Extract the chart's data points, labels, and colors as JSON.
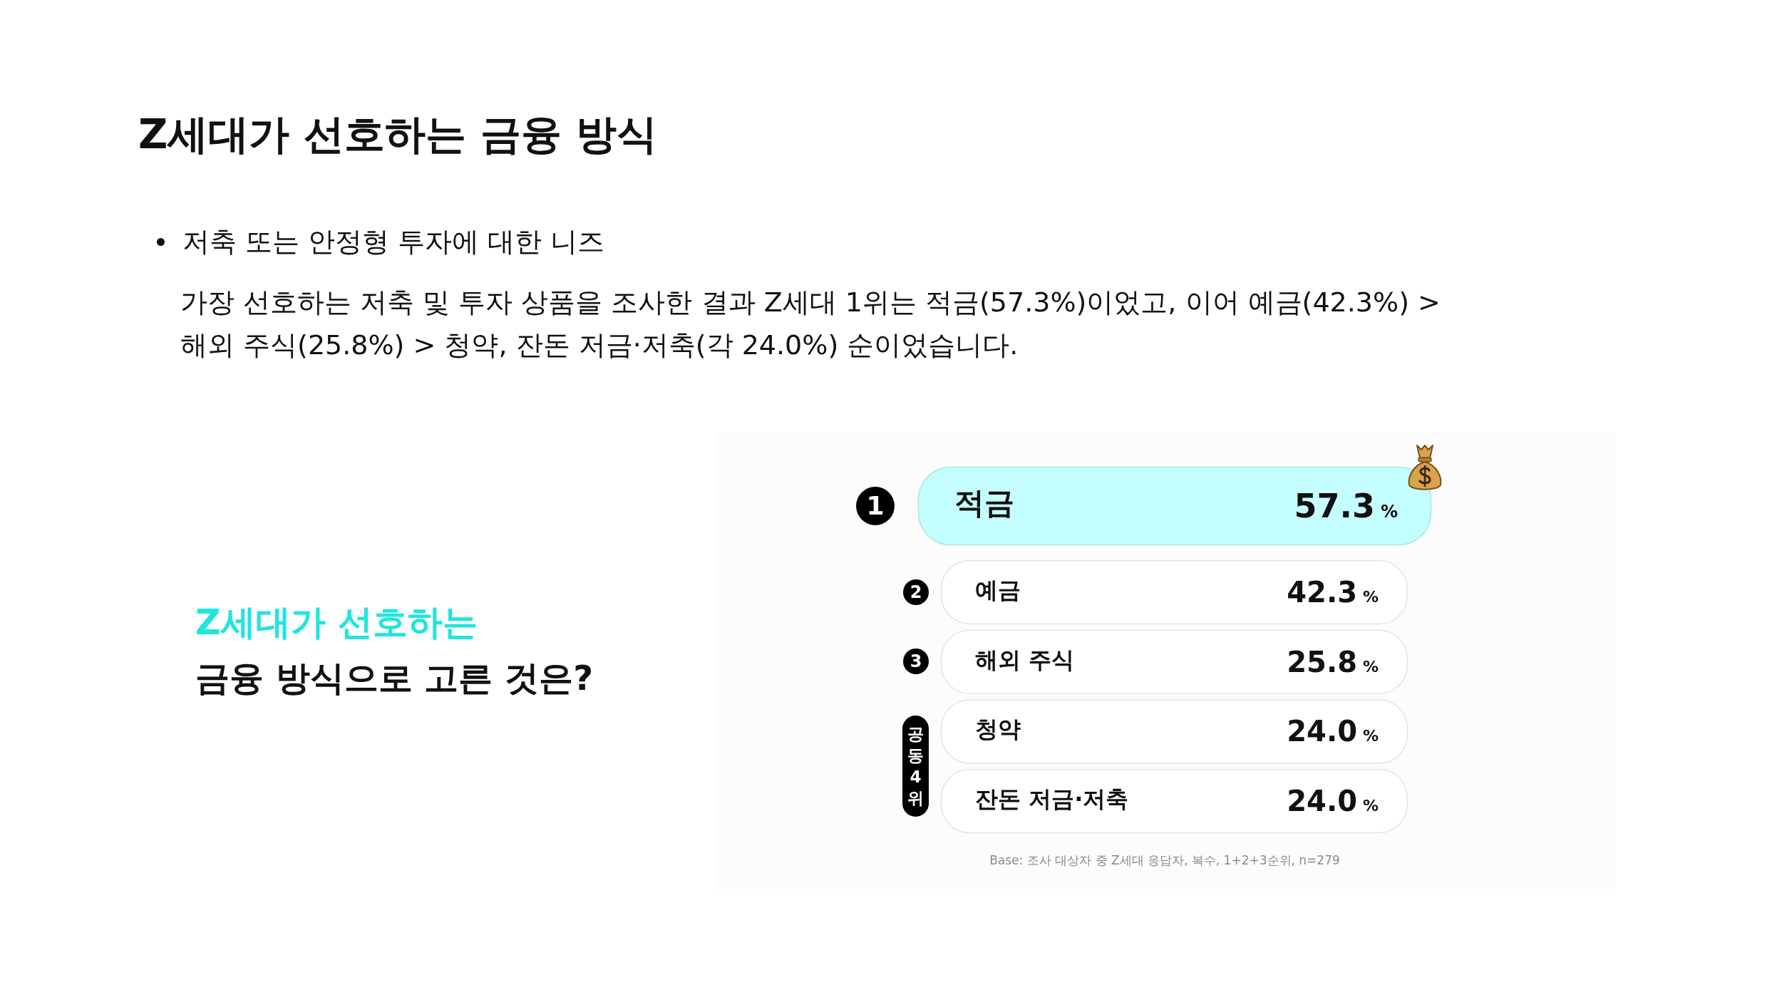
{
  "chart_data": {
    "type": "other",
    "title": "Z세대가 선호하는 금융 방식",
    "subtitle": "저축 또는 안정형 투자에 대한 니즈",
    "categories": [
      "적금",
      "예금",
      "해외 주식",
      "청약",
      "잔돈 저금·저축"
    ],
    "values": [
      57.3,
      42.3,
      25.8,
      24.0,
      24.0
    ],
    "value_labels": [
      "57.3 %",
      "42.3 %",
      "25.8 %",
      "24.0 %",
      "24.0 %"
    ],
    "colors": [
      "#c4feff",
      "#ffffff",
      "#ffffff",
      "#ffffff",
      "#ffffff"
    ],
    "annotations": [
      "가장 선호하는 저축 및 투자 상품을 조사한 결과 Z세대 1위는 적금(57.3%)이었고, 이어 예금(42.3%) > 해외 주식(25.8%) > 청약, 잔돈 저금·저축(각 24.0%) 순이었습니다.",
      "Z세대가 선호하는",
      "금융 방식으로 고른 것은?",
      "1",
      "2",
      "3",
      "공동 4위",
      "Base: 조사 대상자 중 Z세대 응답자, 복수, 1+2+3순위, n=279"
    ]
  }
}
